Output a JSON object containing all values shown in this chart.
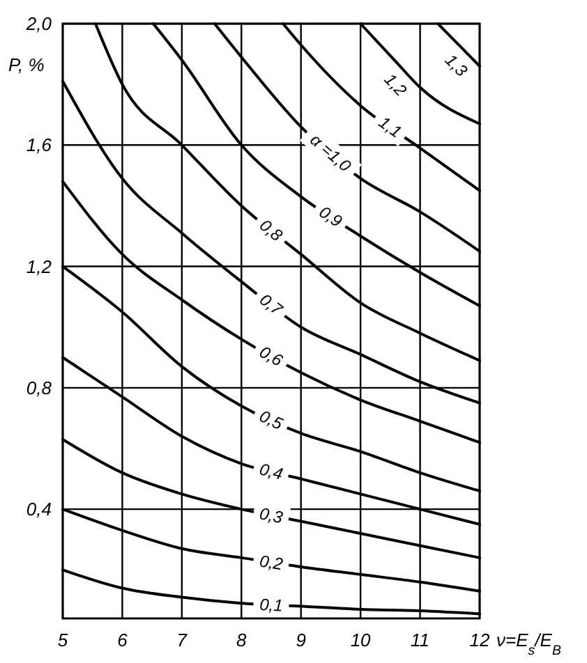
{
  "chart_data": {
    "type": "line",
    "ylabel": "P, %",
    "xlabel": "ν=E$_{s}$/E$_{B}$",
    "xlim": [
      5,
      12
    ],
    "xticks": [
      5,
      6,
      7,
      8,
      9,
      10,
      11,
      12
    ],
    "ylim": [
      0.04,
      2.0
    ],
    "yticks": [
      {
        "value": 0.4,
        "label": "0,4"
      },
      {
        "value": 0.8,
        "label": "0,8"
      },
      {
        "value": 1.2,
        "label": "1,2"
      },
      {
        "value": 1.6,
        "label": "1,6"
      },
      {
        "value": 2.0,
        "label": "2,0"
      }
    ],
    "grid": true,
    "marker": "none",
    "line_style": "solid",
    "series": [
      {
        "name": "0,1",
        "color": "#000000",
        "x": [
          5,
          6,
          7,
          8,
          9,
          10,
          11,
          12
        ],
        "values": [
          0.2,
          0.14,
          0.11,
          0.09,
          0.08,
          0.07,
          0.065,
          0.055
        ]
      },
      {
        "name": "0,2",
        "color": "#000000",
        "x": [
          5,
          6,
          7,
          8,
          9,
          10,
          11,
          12
        ],
        "values": [
          0.4,
          0.33,
          0.27,
          0.24,
          0.21,
          0.185,
          0.16,
          0.13
        ]
      },
      {
        "name": "0,3",
        "color": "#000000",
        "x": [
          5,
          6,
          7,
          8,
          9,
          10,
          11,
          12
        ],
        "values": [
          0.63,
          0.52,
          0.45,
          0.4,
          0.36,
          0.32,
          0.28,
          0.24
        ]
      },
      {
        "name": "0,4",
        "color": "#000000",
        "x": [
          5,
          6,
          7,
          8,
          9,
          10,
          11,
          12
        ],
        "values": [
          0.9,
          0.77,
          0.64,
          0.55,
          0.5,
          0.45,
          0.4,
          0.35
        ]
      },
      {
        "name": "0,5",
        "color": "#000000",
        "x": [
          5,
          6,
          7,
          8,
          9,
          10,
          11,
          12
        ],
        "values": [
          1.2,
          1.05,
          0.87,
          0.74,
          0.65,
          0.59,
          0.52,
          0.46
        ]
      },
      {
        "name": "0,6",
        "color": "#000000",
        "x": [
          5,
          6,
          7,
          8,
          9,
          10,
          11,
          12
        ],
        "values": [
          1.48,
          1.24,
          1.09,
          0.96,
          0.85,
          0.76,
          0.69,
          0.62
        ]
      },
      {
        "name": "0,7",
        "color": "#000000",
        "x": [
          5,
          6,
          7,
          8,
          9,
          10,
          11,
          12
        ],
        "values": [
          1.81,
          1.49,
          1.31,
          1.15,
          1.0,
          0.91,
          0.82,
          0.75
        ]
      },
      {
        "name": "0,8",
        "color": "#000000",
        "x": [
          5.55,
          6,
          7,
          8,
          9,
          10,
          11,
          12
        ],
        "values": [
          2.0,
          1.8,
          1.6,
          1.4,
          1.24,
          1.08,
          0.98,
          0.89
        ]
      },
      {
        "name": "0,9",
        "color": "#000000",
        "x": [
          6.52,
          7,
          8,
          9,
          10,
          11,
          12
        ],
        "values": [
          2.0,
          1.88,
          1.6,
          1.43,
          1.3,
          1.18,
          1.07
        ]
      },
      {
        "name": "α =1,0",
        "color": "#000000",
        "x": [
          7.55,
          8,
          9,
          10,
          11,
          12
        ],
        "values": [
          2.0,
          1.89,
          1.66,
          1.49,
          1.38,
          1.25
        ]
      },
      {
        "name": "1,1",
        "color": "#000000",
        "x": [
          8.7,
          9,
          10,
          11,
          12
        ],
        "values": [
          2.0,
          1.93,
          1.73,
          1.59,
          1.45
        ]
      },
      {
        "name": "1,2",
        "color": "#000000",
        "x": [
          10,
          10.57,
          11,
          12
        ],
        "values": [
          2.0,
          1.88,
          1.79,
          1.67
        ]
      },
      {
        "name": "1,3",
        "color": "#000000",
        "x": [
          11.3,
          11.6,
          12
        ],
        "values": [
          2.0,
          1.94,
          1.86
        ]
      }
    ]
  }
}
